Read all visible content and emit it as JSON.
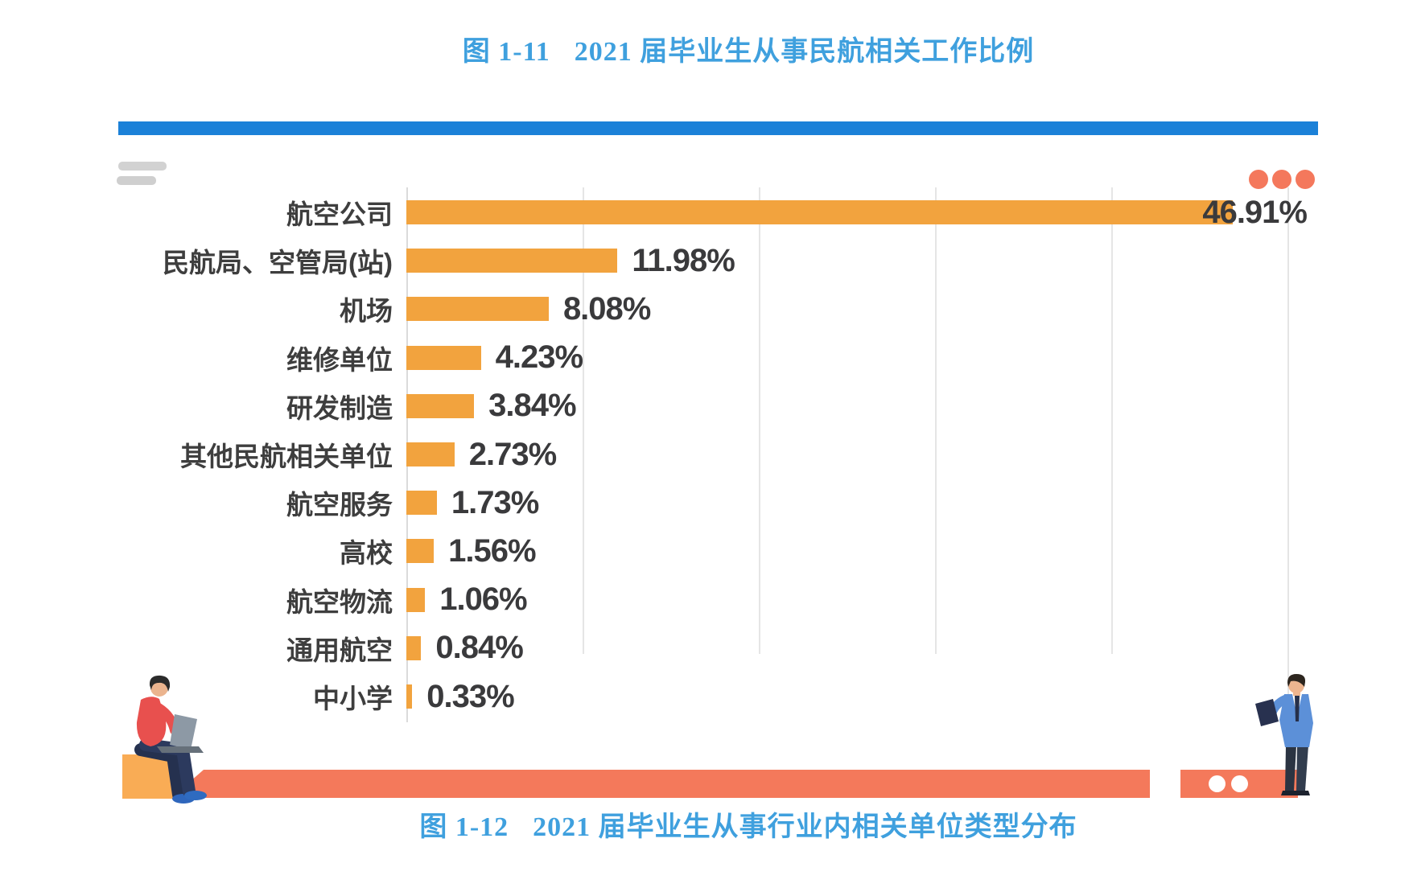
{
  "figure_top": {
    "label": "图 1-11",
    "title": "2021 届毕业生从事民航相关工作比例"
  },
  "figure_bottom": {
    "label": "图 1-12",
    "title": "2021 届毕业生从事行业内相关单位类型分布"
  },
  "chart_data": {
    "type": "bar",
    "orientation": "horizontal",
    "title": "2021 届毕业生从事民航相关工作比例",
    "categories": [
      "航空公司",
      "民航局、空管局(站)",
      "机场",
      "维修单位",
      "研发制造",
      "其他民航相关单位",
      "航空服务",
      "高校",
      "航空物流",
      "通用航空",
      "中小学"
    ],
    "values": [
      46.91,
      11.98,
      8.08,
      4.23,
      3.84,
      2.73,
      1.73,
      1.56,
      1.06,
      0.84,
      0.33
    ],
    "value_labels": [
      "46.91%",
      "11.98%",
      "8.08%",
      "4.23%",
      "3.84%",
      "2.73%",
      "1.73%",
      "1.56%",
      "1.06%",
      "0.84%",
      "0.33%"
    ],
    "xlim": [
      0,
      50
    ],
    "gridline_interval": 10,
    "grid": true,
    "legend": false
  },
  "colors": {
    "title_blue": "#3FA0DE",
    "header_bar_blue": "#1B81D8",
    "bar_orange": "#F2A33E",
    "accent_salmon": "#F4795B",
    "category_text": "#3E3E3E",
    "value_text": "#3A3A3C",
    "decor_gray": "#D2D2D2",
    "gridline": "#E5E5E5"
  },
  "decor": {
    "top_left_icon": "menu-lines-icon",
    "top_right_icon": "ellipsis-dots-icon",
    "left_illustration": "person-sitting-with-laptop",
    "right_illustration": "person-standing-with-tablet"
  }
}
